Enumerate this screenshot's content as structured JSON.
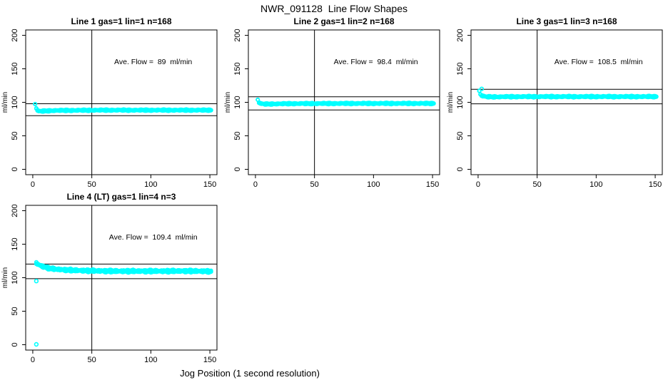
{
  "page": {
    "title": "NWR_091128  Line Flow Shapes",
    "xlabel": "Jog Position (1 second resolution)"
  },
  "colors": {
    "points": "#00FFFF",
    "axis": "#000000",
    "background": "#FFFFFF"
  },
  "chart_data": {
    "type": "scatter",
    "title": "NWR_091128  Line Flow Shapes",
    "xlabel": "Jog Position (1 second resolution)",
    "ylabel": "ml/min",
    "layout": {
      "rows": 2,
      "cols": 3,
      "grid": false,
      "xlim": [
        -6,
        156
      ],
      "ylim": [
        -8,
        208
      ],
      "x_ticks": [
        0,
        50,
        100,
        150
      ],
      "y_ticks": [
        0,
        50,
        100,
        150,
        200
      ],
      "annotation_xy": [
        102,
        157
      ]
    },
    "panels": [
      {
        "id": "line-1",
        "title": "Line 1 gas=1 lin=1 n=168",
        "annotation": "Ave. Flow =  89  ml/min",
        "ave_flow": 89,
        "hline_upper": 97.9,
        "hline_lower": 80.1,
        "vline_x": 50,
        "x_range": [
          2,
          151
        ],
        "noise_amp": 0.7,
        "passes": 2,
        "outliers": [],
        "series_anchors": [
          [
            2,
            97.5
          ],
          [
            3,
            91
          ],
          [
            4,
            88
          ],
          [
            5,
            86.8
          ],
          [
            8,
            86.8
          ],
          [
            12,
            87.3
          ],
          [
            20,
            87.8
          ],
          [
            35,
            88
          ],
          [
            60,
            88.3
          ],
          [
            100,
            88.3
          ],
          [
            151,
            88.3
          ]
        ]
      },
      {
        "id": "line-2",
        "title": "Line 2 gas=1 lin=2 n=168",
        "annotation": "Ave. Flow =  98.4  ml/min",
        "ave_flow": 98.4,
        "hline_upper": 108.2,
        "hline_lower": 88.6,
        "vline_x": 50,
        "x_range": [
          2,
          151
        ],
        "noise_amp": 0.7,
        "passes": 2,
        "outliers": [],
        "series_anchors": [
          [
            2,
            104
          ],
          [
            3,
            99.5
          ],
          [
            5,
            97.8
          ],
          [
            8,
            97.3
          ],
          [
            15,
            97.6
          ],
          [
            30,
            98
          ],
          [
            60,
            98.2
          ],
          [
            100,
            98.3
          ],
          [
            151,
            98.3
          ]
        ]
      },
      {
        "id": "line-3",
        "title": "Line 3 gas=1 lin=3 n=168",
        "annotation": "Ave. Flow =  108.5  ml/min",
        "ave_flow": 108.5,
        "hline_upper": 119.4,
        "hline_lower": 97.7,
        "vline_x": 50,
        "x_range": [
          1,
          151
        ],
        "noise_amp": 0.8,
        "passes": 2,
        "outliers": [
          [
            3,
            120
          ]
        ],
        "series_anchors": [
          [
            1,
            117
          ],
          [
            2,
            112
          ],
          [
            3,
            110
          ],
          [
            5,
            108.8
          ],
          [
            8,
            108.2
          ],
          [
            15,
            108.2
          ],
          [
            30,
            108.4
          ],
          [
            60,
            108.5
          ],
          [
            100,
            108.5
          ],
          [
            151,
            108.5
          ]
        ]
      },
      {
        "id": "line-4",
        "title": "Line 4 (LT) gas=1 lin=4 n=3",
        "annotation": "Ave. Flow =  109.4  ml/min",
        "ave_flow": 109.4,
        "hline_upper": 120.3,
        "hline_lower": 98.5,
        "vline_x": 50,
        "x_range": [
          3,
          151
        ],
        "noise_amp": 1.3,
        "passes": 3,
        "outliers": [
          [
            3,
            95
          ],
          [
            3,
            0.5
          ]
        ],
        "series_anchors": [
          [
            3,
            121.5
          ],
          [
            4,
            120.5
          ],
          [
            6,
            118.5
          ],
          [
            9,
            116.5
          ],
          [
            13,
            114.5
          ],
          [
            18,
            113
          ],
          [
            25,
            112
          ],
          [
            35,
            111
          ],
          [
            50,
            110.3
          ],
          [
            70,
            109.8
          ],
          [
            100,
            109.8
          ],
          [
            130,
            110
          ],
          [
            151,
            109.5
          ]
        ]
      }
    ]
  }
}
